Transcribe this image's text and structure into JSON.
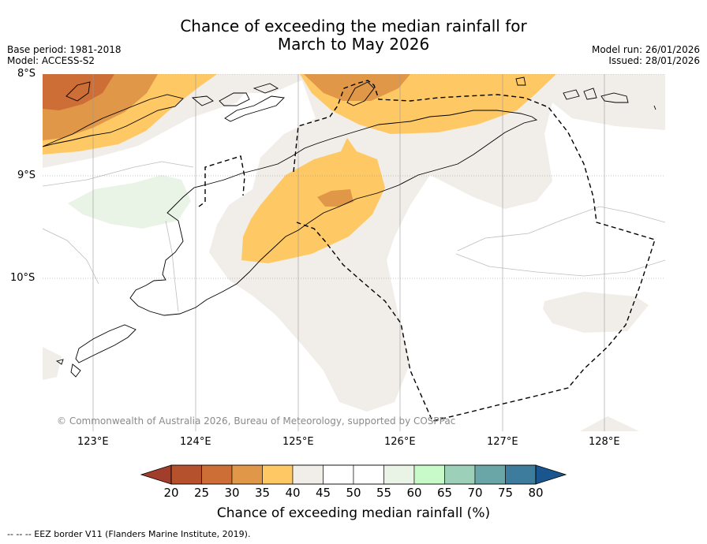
{
  "title_line1": "Chance of exceeding the median rainfall for",
  "title_line2": "March to May 2026",
  "base_period": "Base period: 1981-2018",
  "model": "Model: ACCESS-S2",
  "model_run": "Model run: 26/01/2026",
  "issued": "Issued: 28/01/2026",
  "lat_labels": [
    "8°S",
    "9°S",
    "10°S"
  ],
  "lon_labels": [
    "123°E",
    "124°E",
    "125°E",
    "126°E",
    "127°E",
    "128°E"
  ],
  "copyright": "© Commonwealth of Australia 2026, Bureau of Meteorology, supported by COSPPac",
  "colorbar": {
    "ticks": [
      "20",
      "25",
      "30",
      "35",
      "40",
      "45",
      "50",
      "55",
      "60",
      "65",
      "70",
      "75",
      "80"
    ],
    "colors": [
      "#b5522d",
      "#cc6e35",
      "#e09748",
      "#fec964",
      "#f1ede8",
      "#ffffff",
      "#ffffff",
      "#e9f3e6",
      "#c8fac9",
      "#9cd0b9",
      "#6aa6a8",
      "#3d7c9d"
    ],
    "under_color": "#a13d2a",
    "over_color": "#19568f",
    "title": "Chance of exceeding median rainfall (%)"
  },
  "legend_note": "-- -- -- EEZ border V11 (Flanders Marine Institute, 2019)."
}
